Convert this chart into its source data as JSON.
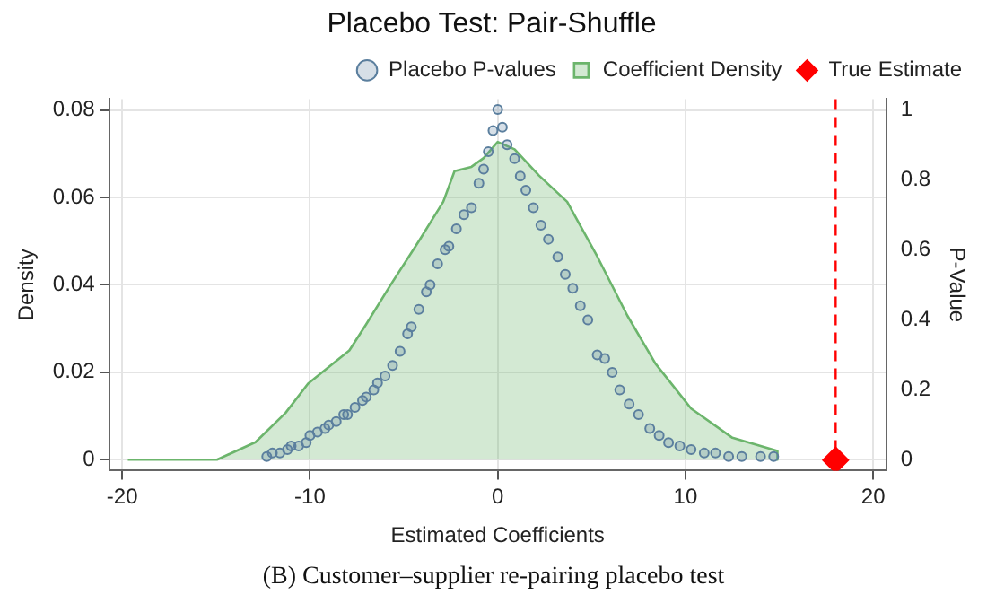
{
  "chart_data": {
    "type": "area",
    "title": "Placebo Test: Pair-Shuffle",
    "xlabel": "Estimated Coefficients",
    "ylabel": "Density",
    "y2label": "P-Value",
    "xlim": [
      -20.7,
      20.7
    ],
    "xticks": [
      -20,
      -10,
      0,
      10,
      20
    ],
    "ylim": [
      -0.0025,
      0.0825
    ],
    "yticks": [
      0,
      0.02,
      0.04,
      0.06,
      0.08
    ],
    "y2lim": [
      -0.03,
      1.03
    ],
    "y2ticks": [
      0,
      0.2,
      0.4,
      0.6,
      0.8,
      1
    ],
    "grid": true,
    "legend": "top right",
    "series": [
      {
        "name": "Placebo P-values",
        "type": "scatter",
        "axis": "y2",
        "marker": "circle",
        "color": "#5b7f9e",
        "x": [
          -12.3,
          -12,
          -11.6,
          -11.2,
          -11,
          -10.6,
          -10.2,
          -10,
          -9.6,
          -9.2,
          -9,
          -8.6,
          -8.2,
          -8,
          -7.6,
          -7.2,
          -7,
          -6.6,
          -6.4,
          -6,
          -5.6,
          -5.2,
          -4.8,
          -4.6,
          -4.2,
          -3.8,
          -3.6,
          -3.2,
          -2.8,
          -2.6,
          -2.2,
          -1.8,
          -1.4,
          -1,
          -0.75,
          -0.5,
          -0.25,
          0,
          0.25,
          0.5,
          0.9,
          1.2,
          1.5,
          1.9,
          2.3,
          2.7,
          3.2,
          3.6,
          4,
          4.4,
          4.8,
          5.3,
          5.7,
          6.1,
          6.5,
          7,
          7.5,
          8.1,
          8.6,
          9.1,
          9.7,
          10.3,
          11,
          11.6,
          12.3,
          13,
          14,
          14.7
        ],
        "values": [
          0.01,
          0.02,
          0.02,
          0.03,
          0.04,
          0.04,
          0.05,
          0.07,
          0.08,
          0.09,
          0.1,
          0.11,
          0.13,
          0.13,
          0.15,
          0.17,
          0.18,
          0.2,
          0.22,
          0.24,
          0.27,
          0.31,
          0.36,
          0.38,
          0.43,
          0.48,
          0.5,
          0.56,
          0.6,
          0.61,
          0.66,
          0.7,
          0.72,
          0.79,
          0.83,
          0.88,
          0.94,
          1,
          0.95,
          0.9,
          0.86,
          0.81,
          0.77,
          0.72,
          0.67,
          0.63,
          0.58,
          0.53,
          0.49,
          0.44,
          0.4,
          0.3,
          0.29,
          0.25,
          0.2,
          0.16,
          0.13,
          0.09,
          0.07,
          0.05,
          0.04,
          0.03,
          0.02,
          0.02,
          0.01,
          0.01,
          0.01,
          0.01
        ]
      },
      {
        "name": "Coefficient Density",
        "color": "#6cb56c",
        "x": [
          -19.7,
          -17,
          -14.95,
          -12.9,
          -11.3,
          -10.1,
          -7.9,
          -7,
          -5.7,
          -4.2,
          -2.9,
          -2.3,
          -1.4,
          -0.75,
          0,
          0.9,
          2.2,
          3.7,
          5.3,
          6.9,
          8.4,
          10.3,
          12.5,
          14.9,
          14.9
        ],
        "values": [
          0,
          0,
          0,
          0.004,
          0.0107,
          0.0174,
          0.025,
          0.031,
          0.04,
          0.05,
          0.059,
          0.066,
          0.067,
          0.069,
          0.0727,
          0.071,
          0.065,
          0.059,
          0.0465,
          0.033,
          0.022,
          0.0117,
          0.005,
          0.002,
          0
        ]
      },
      {
        "name": "True Estimate",
        "type": "scatter",
        "axis": "y2",
        "marker": "diamond",
        "color": "#ff0000",
        "x": [
          18
        ],
        "values": [
          0
        ]
      }
    ],
    "ref_lines": [
      {
        "axis": "x",
        "value": 18,
        "color": "#ff0000",
        "line_style": "dashed"
      }
    ],
    "annotations": [
      "(B) Customer–supplier re-pairing placebo test"
    ]
  }
}
